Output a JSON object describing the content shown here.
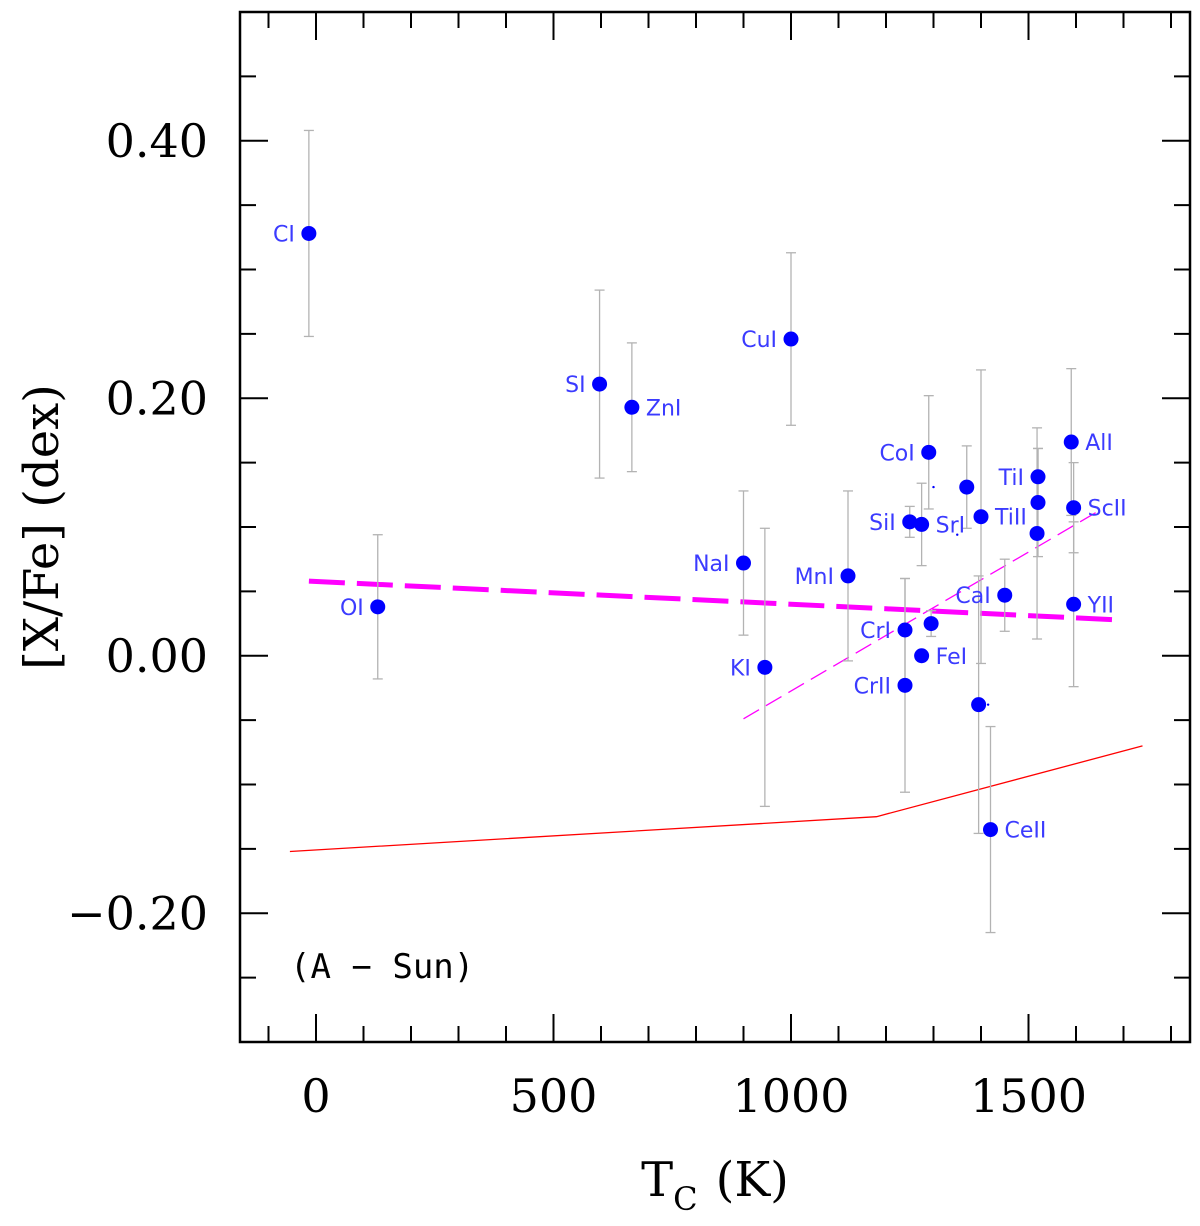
{
  "chart_data": {
    "type": "scatter",
    "title": "",
    "xlabel_main": "T",
    "xlabel_sub": "C",
    "xlabel_unit": "(K)",
    "ylabel": "[X/Fe] (dex)",
    "annotation": "(A − Sun)",
    "xlim": [
      -160,
      1840
    ],
    "ylim": [
      -0.3,
      0.5
    ],
    "x_ticks": [
      {
        "value": 0,
        "label": "0"
      },
      {
        "value": 500,
        "label": "500"
      },
      {
        "value": 1000,
        "label": "1000"
      },
      {
        "value": 1500,
        "label": "1500"
      }
    ],
    "y_ticks": [
      {
        "value": 0.4,
        "label": "0.40"
      },
      {
        "value": 0.2,
        "label": "0.20"
      },
      {
        "value": 0.0,
        "label": "0.00"
      },
      {
        "value": -0.2,
        "label": "−0.20"
      }
    ],
    "grid": false,
    "colors": {
      "points": "#0000ff",
      "labels": "#3b3bff",
      "errorbars": "#b3b3b3",
      "fit_thick": "#ff00ff",
      "fit_thin": "#ff00ff",
      "reference": "#ff0000"
    },
    "points": [
      {
        "label": "CI",
        "x": -15,
        "y": 0.328,
        "err": 0.08,
        "label_side": "left"
      },
      {
        "label": "OI",
        "x": 130,
        "y": 0.038,
        "err": 0.056,
        "label_side": "left"
      },
      {
        "label": "SI",
        "x": 597,
        "y": 0.211,
        "err": 0.073,
        "label_side": "left"
      },
      {
        "label": "ZnI",
        "x": 665,
        "y": 0.193,
        "err": 0.05,
        "label_side": "right"
      },
      {
        "label": "CuI",
        "x": 1000,
        "y": 0.246,
        "err": 0.067,
        "label_side": "left"
      },
      {
        "label": "NaI",
        "x": 900,
        "y": 0.072,
        "err": 0.056,
        "label_side": "left"
      },
      {
        "label": "KI",
        "x": 945,
        "y": -0.009,
        "err": 0.108,
        "label_side": "left"
      },
      {
        "label": "MnI",
        "x": 1120,
        "y": 0.062,
        "err": 0.066,
        "label_side": "left"
      },
      {
        "label": "CoI",
        "x": 1290,
        "y": 0.158,
        "err": 0.044,
        "label_side": "left"
      },
      {
        "label": "SiI",
        "x": 1250,
        "y": 0.104,
        "err": 0.012,
        "label_side": "left"
      },
      {
        "label": "SrI",
        "x": 1275,
        "y": 0.102,
        "err": 0.032,
        "label_side": "right"
      },
      {
        "label": "",
        "x": 1370,
        "y": 0.131,
        "err": 0.032,
        "label_side": "none"
      },
      {
        "label": "TiII",
        "x": 1400,
        "y": 0.108,
        "err": 0.114,
        "label_side": "right"
      },
      {
        "label": "TiI",
        "x": 1520,
        "y": 0.139,
        "err": 0.022,
        "label_side": "left"
      },
      {
        "label": "",
        "x": 1520,
        "y": 0.119,
        "err": 0.042,
        "label_side": "none"
      },
      {
        "label": "",
        "x": 1518,
        "y": 0.095,
        "err": 0.082,
        "label_side": "none"
      },
      {
        "label": "AlI",
        "x": 1590,
        "y": 0.166,
        "err": 0.057,
        "label_side": "right"
      },
      {
        "label": "ScII",
        "x": 1595,
        "y": 0.115,
        "err": 0.035,
        "label_side": "right"
      },
      {
        "label": "YII",
        "x": 1595,
        "y": 0.04,
        "err": 0.064,
        "label_side": "right"
      },
      {
        "label": "CaI",
        "x": 1450,
        "y": 0.047,
        "err": 0.028,
        "label_side": "left"
      },
      {
        "label": "CrI",
        "x": 1240,
        "y": 0.02,
        "err": 0.04,
        "label_side": "left"
      },
      {
        "label": "",
        "x": 1295,
        "y": 0.025,
        "err": 0.01,
        "label_side": "none"
      },
      {
        "label": "FeI",
        "x": 1275,
        "y": 0.0,
        "err": 0.0,
        "label_side": "right"
      },
      {
        "label": "CrII",
        "x": 1240,
        "y": -0.023,
        "err": 0.083,
        "label_side": "left"
      },
      {
        "label": "",
        "x": 1395,
        "y": -0.038,
        "err": 0.1,
        "label_side": "none"
      },
      {
        "label": "CeII",
        "x": 1420,
        "y": -0.135,
        "err": 0.08,
        "label_side": "right"
      }
    ],
    "lines": [
      {
        "name": "fit-thick-dashed",
        "style": "thick-dashed",
        "points": [
          [
            -15,
            0.058
          ],
          [
            1680,
            0.028
          ]
        ]
      },
      {
        "name": "fit-thin-dashed",
        "style": "thin-dashed",
        "points": [
          [
            900,
            -0.049
          ],
          [
            1650,
            0.113
          ]
        ]
      },
      {
        "name": "reference-line",
        "style": "solid",
        "points": [
          [
            -55,
            -0.152
          ],
          [
            1180,
            -0.125
          ],
          [
            1740,
            -0.07
          ]
        ]
      }
    ],
    "dots": [
      [
        1300,
        0.131
      ],
      [
        1350,
        0.094
      ],
      [
        1415,
        -0.038
      ]
    ]
  }
}
